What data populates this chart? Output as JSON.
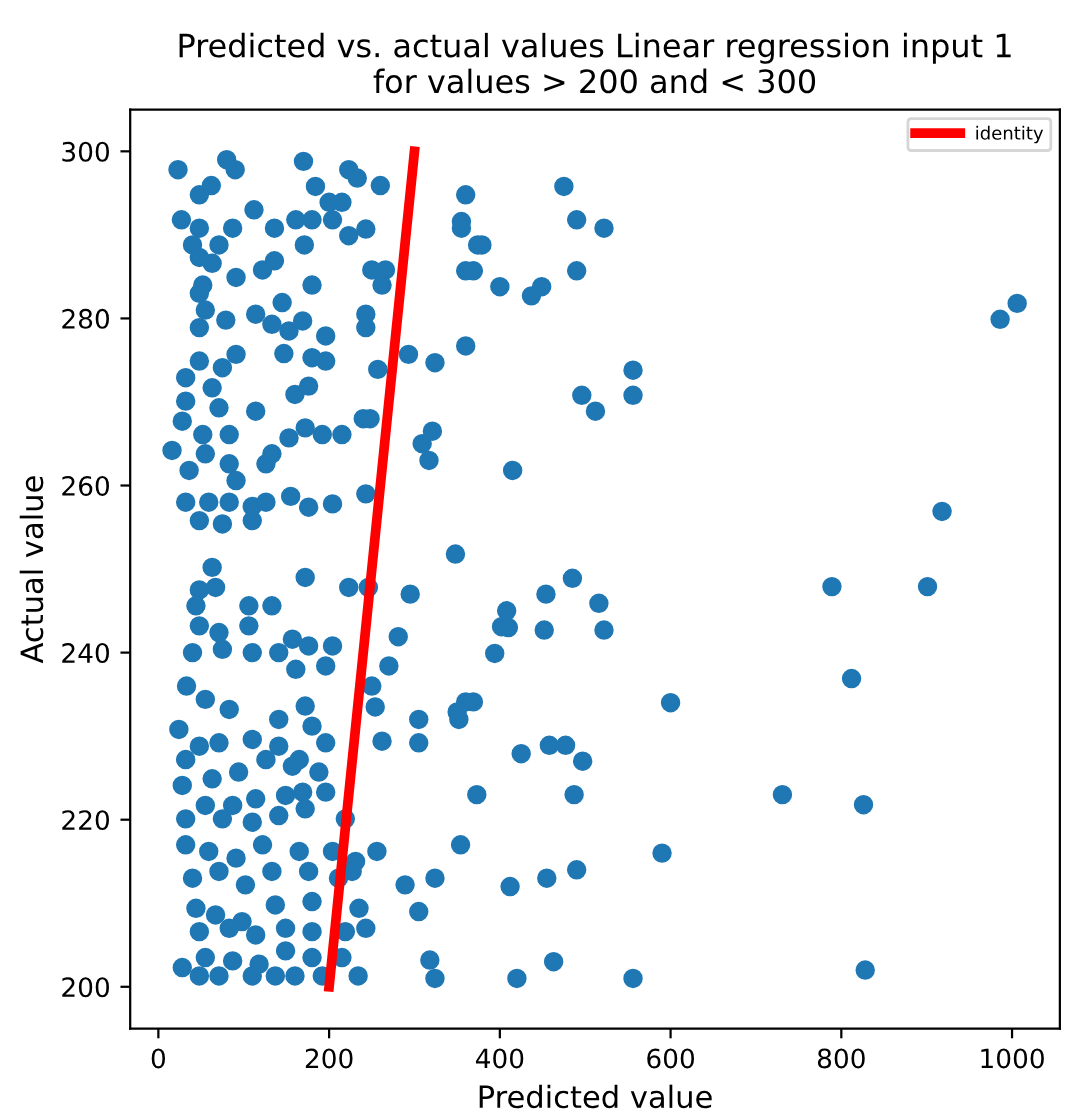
{
  "chart_data": {
    "type": "scatter",
    "title": "Predicted vs. actual values Linear regression input 1\nfor values > 200 and < 300",
    "xlabel": "Predicted value",
    "ylabel": "Actual value",
    "xlim": [
      -33,
      1056
    ],
    "ylim": [
      195,
      305
    ],
    "xticks": [
      0,
      200,
      400,
      600,
      800,
      1000
    ],
    "yticks": [
      200,
      220,
      240,
      260,
      280,
      300
    ],
    "grid": false,
    "legend": "top right",
    "series": [
      {
        "marker": "circle",
        "color": "#1f77b4",
        "x": [
          360,
          475,
          355,
          355,
          490,
          522,
          374,
          379,
          360,
          369,
          400,
          437,
          449,
          490,
          986,
          1006,
          360,
          556,
          556,
          496,
          512,
          415,
          918,
          348,
          789,
          901,
          485,
          454,
          516,
          408,
          402,
          410,
          452,
          522,
          394,
          812,
          360,
          369,
          350,
          600,
          425,
          458,
          477,
          497,
          373,
          487,
          731,
          826,
          354,
          590,
          412,
          455,
          490,
          463,
          420,
          556,
          828,
          23,
          80,
          90,
          170,
          223,
          233,
          184,
          260,
          62,
          48,
          112,
          27,
          48,
          87,
          136,
          161,
          180,
          204,
          200,
          215,
          223,
          243,
          40,
          71,
          171,
          48,
          63,
          91,
          122,
          136,
          52,
          180,
          250,
          266,
          262,
          48,
          55,
          145,
          79,
          114,
          133,
          48,
          153,
          169,
          196,
          243,
          243,
          48,
          32,
          63,
          91,
          75,
          147,
          180,
          196,
          257,
          160,
          176,
          32,
          71,
          114,
          28,
          52,
          83,
          16,
          55,
          83,
          126,
          133,
          153,
          172,
          192,
          215,
          240,
          248,
          36,
          91,
          32,
          59,
          83,
          110,
          126,
          155,
          176,
          204,
          243,
          48,
          75,
          110,
          293,
          324,
          321,
          309,
          317,
          63,
          67,
          48,
          44,
          106,
          133,
          172,
          223,
          246,
          295,
          281,
          48,
          71,
          106,
          157,
          176,
          40,
          75,
          110,
          141,
          161,
          204,
          196,
          270,
          250,
          33,
          55,
          83,
          141,
          172,
          180,
          254,
          305,
          352,
          24,
          48,
          71,
          110,
          141,
          165,
          196,
          262,
          305,
          32,
          63,
          94,
          126,
          157,
          188,
          28,
          55,
          87,
          114,
          149,
          169,
          196,
          32,
          75,
          110,
          141,
          172,
          219,
          32,
          59,
          91,
          122,
          165,
          204,
          231,
          256,
          40,
          71,
          102,
          133,
          176,
          211,
          227,
          44,
          67,
          98,
          137,
          180,
          235,
          289,
          324,
          305,
          318,
          324,
          48,
          83,
          114,
          149,
          180,
          219,
          243,
          28,
          55,
          87,
          118,
          149,
          180,
          215,
          48,
          71,
          110,
          137,
          160,
          192,
          234
        ],
        "values": [
          294.8,
          295.8,
          291.6,
          290.8,
          291.8,
          290.8,
          288.8,
          288.8,
          285.7,
          285.7,
          283.8,
          282.7,
          283.8,
          285.7,
          279.9,
          281.8,
          276.7,
          273.8,
          270.8,
          270.8,
          268.9,
          261.8,
          256.9,
          251.8,
          247.9,
          247.9,
          248.9,
          247,
          245.9,
          245,
          243.1,
          243,
          242.7,
          242.7,
          239.9,
          236.9,
          234.1,
          234.1,
          232.9,
          234,
          227.9,
          228.9,
          228.9,
          227,
          223,
          223,
          223,
          221.8,
          217,
          216,
          212,
          213,
          214,
          203,
          201,
          201,
          202,
          297.8,
          299,
          297.8,
          298.8,
          297.8,
          296.8,
          295.8,
          295.9,
          295.9,
          294.8,
          293,
          291.8,
          290.8,
          290.8,
          290.8,
          291.8,
          291.8,
          291.8,
          293.9,
          293.9,
          289.9,
          290.7,
          288.8,
          288.8,
          288.8,
          287.3,
          286.6,
          284.9,
          285.8,
          286.9,
          284,
          284,
          285.8,
          285.8,
          284,
          283,
          281,
          281.9,
          279.8,
          280.5,
          279.3,
          278.9,
          278.5,
          279.7,
          277.9,
          280.5,
          278.9,
          274.9,
          272.9,
          271.7,
          275.7,
          274.1,
          275.8,
          275.3,
          274.9,
          273.9,
          270.9,
          271.9,
          270.1,
          269.3,
          268.9,
          267.7,
          266.1,
          266.1,
          264.2,
          263.8,
          262.6,
          262.6,
          263.8,
          265.7,
          266.9,
          266.1,
          266.1,
          268,
          268,
          261.8,
          260.6,
          258,
          258,
          258,
          257.5,
          258,
          258.7,
          257.4,
          257.8,
          259,
          255.8,
          255.4,
          255.8,
          275.7,
          274.7,
          266.5,
          265,
          263,
          250.2,
          247.8,
          247.5,
          245.6,
          245.6,
          245.6,
          249,
          247.8,
          247.8,
          247,
          241.9,
          243.2,
          242.4,
          243.2,
          241.6,
          240.8,
          240,
          240.4,
          240,
          240,
          238,
          240.8,
          238.4,
          238.4,
          236,
          236,
          234.4,
          233.2,
          232,
          233.6,
          231.2,
          233.5,
          232,
          232,
          230.8,
          228.8,
          229.2,
          229.6,
          228.8,
          227.2,
          229.2,
          229.4,
          229.2,
          227.2,
          224.9,
          225.7,
          227.2,
          226.4,
          225.7,
          224.1,
          221.7,
          221.7,
          222.5,
          222.9,
          223.3,
          223.3,
          220.1,
          220.1,
          219.7,
          220.5,
          221.3,
          220.1,
          217,
          216.2,
          215.4,
          217,
          216.2,
          216.2,
          215,
          216.2,
          213,
          213.8,
          212.2,
          213.8,
          213.8,
          213,
          213.8,
          209.4,
          208.6,
          207.8,
          209.8,
          210.2,
          209.4,
          212.2,
          213,
          209,
          203.2,
          201,
          206.6,
          207,
          206.2,
          207,
          206.6,
          206.6,
          207,
          202.3,
          203.5,
          203.1,
          202.7,
          204.3,
          203.5,
          203.5,
          201.3,
          201.3,
          201.3,
          201.3,
          201.3,
          201.3,
          201.3
        ]
      },
      {
        "type": "line",
        "name": "identity",
        "color": "#ff0000",
        "x": [
          200,
          300
        ],
        "values": [
          200,
          300
        ]
      }
    ]
  }
}
